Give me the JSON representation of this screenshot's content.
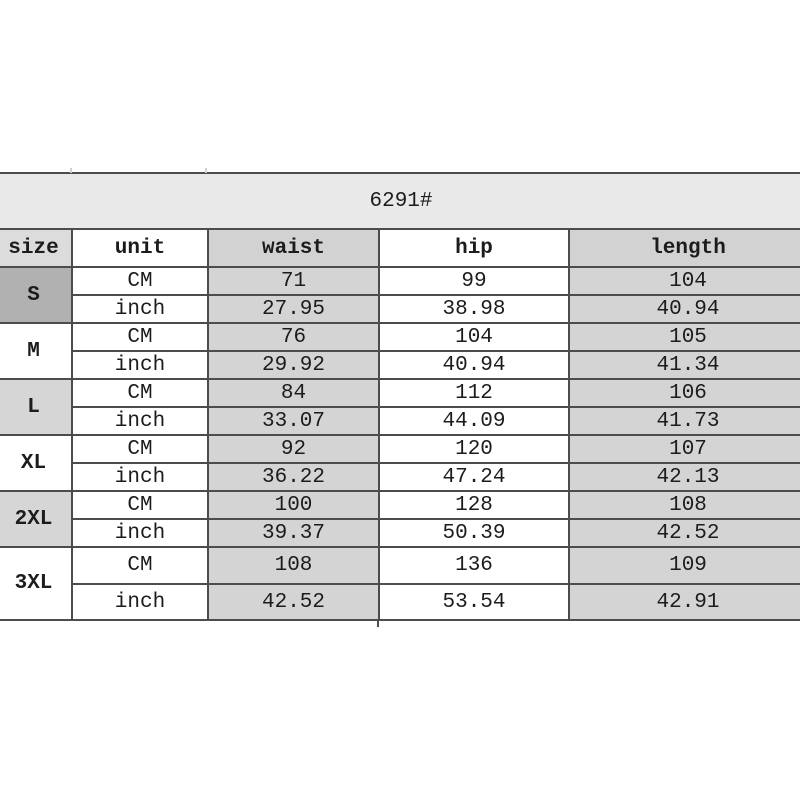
{
  "chart_data": {
    "type": "table",
    "title": "6291#",
    "columns": [
      "size",
      "unit",
      "waist",
      "hip",
      "length"
    ],
    "unit_labels": [
      "CM",
      "inch"
    ],
    "sizes": [
      {
        "label": "S",
        "cm": [
          "71",
          "99",
          "104"
        ],
        "inch": [
          "27.95",
          "38.98",
          "40.94"
        ]
      },
      {
        "label": "M",
        "cm": [
          "76",
          "104",
          "105"
        ],
        "inch": [
          "29.92",
          "40.94",
          "41.34"
        ]
      },
      {
        "label": "L",
        "cm": [
          "84",
          "112",
          "106"
        ],
        "inch": [
          "33.07",
          "44.09",
          "41.73"
        ]
      },
      {
        "label": "XL",
        "cm": [
          "92",
          "120",
          "107"
        ],
        "inch": [
          "36.22",
          "47.24",
          "42.13"
        ]
      },
      {
        "label": "2XL",
        "cm": [
          "100",
          "128",
          "108"
        ],
        "inch": [
          "39.37",
          "50.39",
          "42.52"
        ]
      },
      {
        "label": "3XL",
        "cm": [
          "108",
          "136",
          "109"
        ],
        "inch": [
          "42.52",
          "53.54",
          "42.91"
        ]
      }
    ]
  },
  "colors": {
    "title_bg": "#e9e9e9",
    "size_header_bg": "#dcdcdc",
    "gray_column_bg": "#d4d4d4",
    "white_bg": "#ffffff",
    "border": "#4c4c4c",
    "text": "#1c1c1c",
    "size_cell_bgs": [
      "#b1b1b1",
      "#ffffff",
      "#d6d6d6",
      "#ffffff",
      "#d6d6d6",
      "#ffffff"
    ]
  }
}
